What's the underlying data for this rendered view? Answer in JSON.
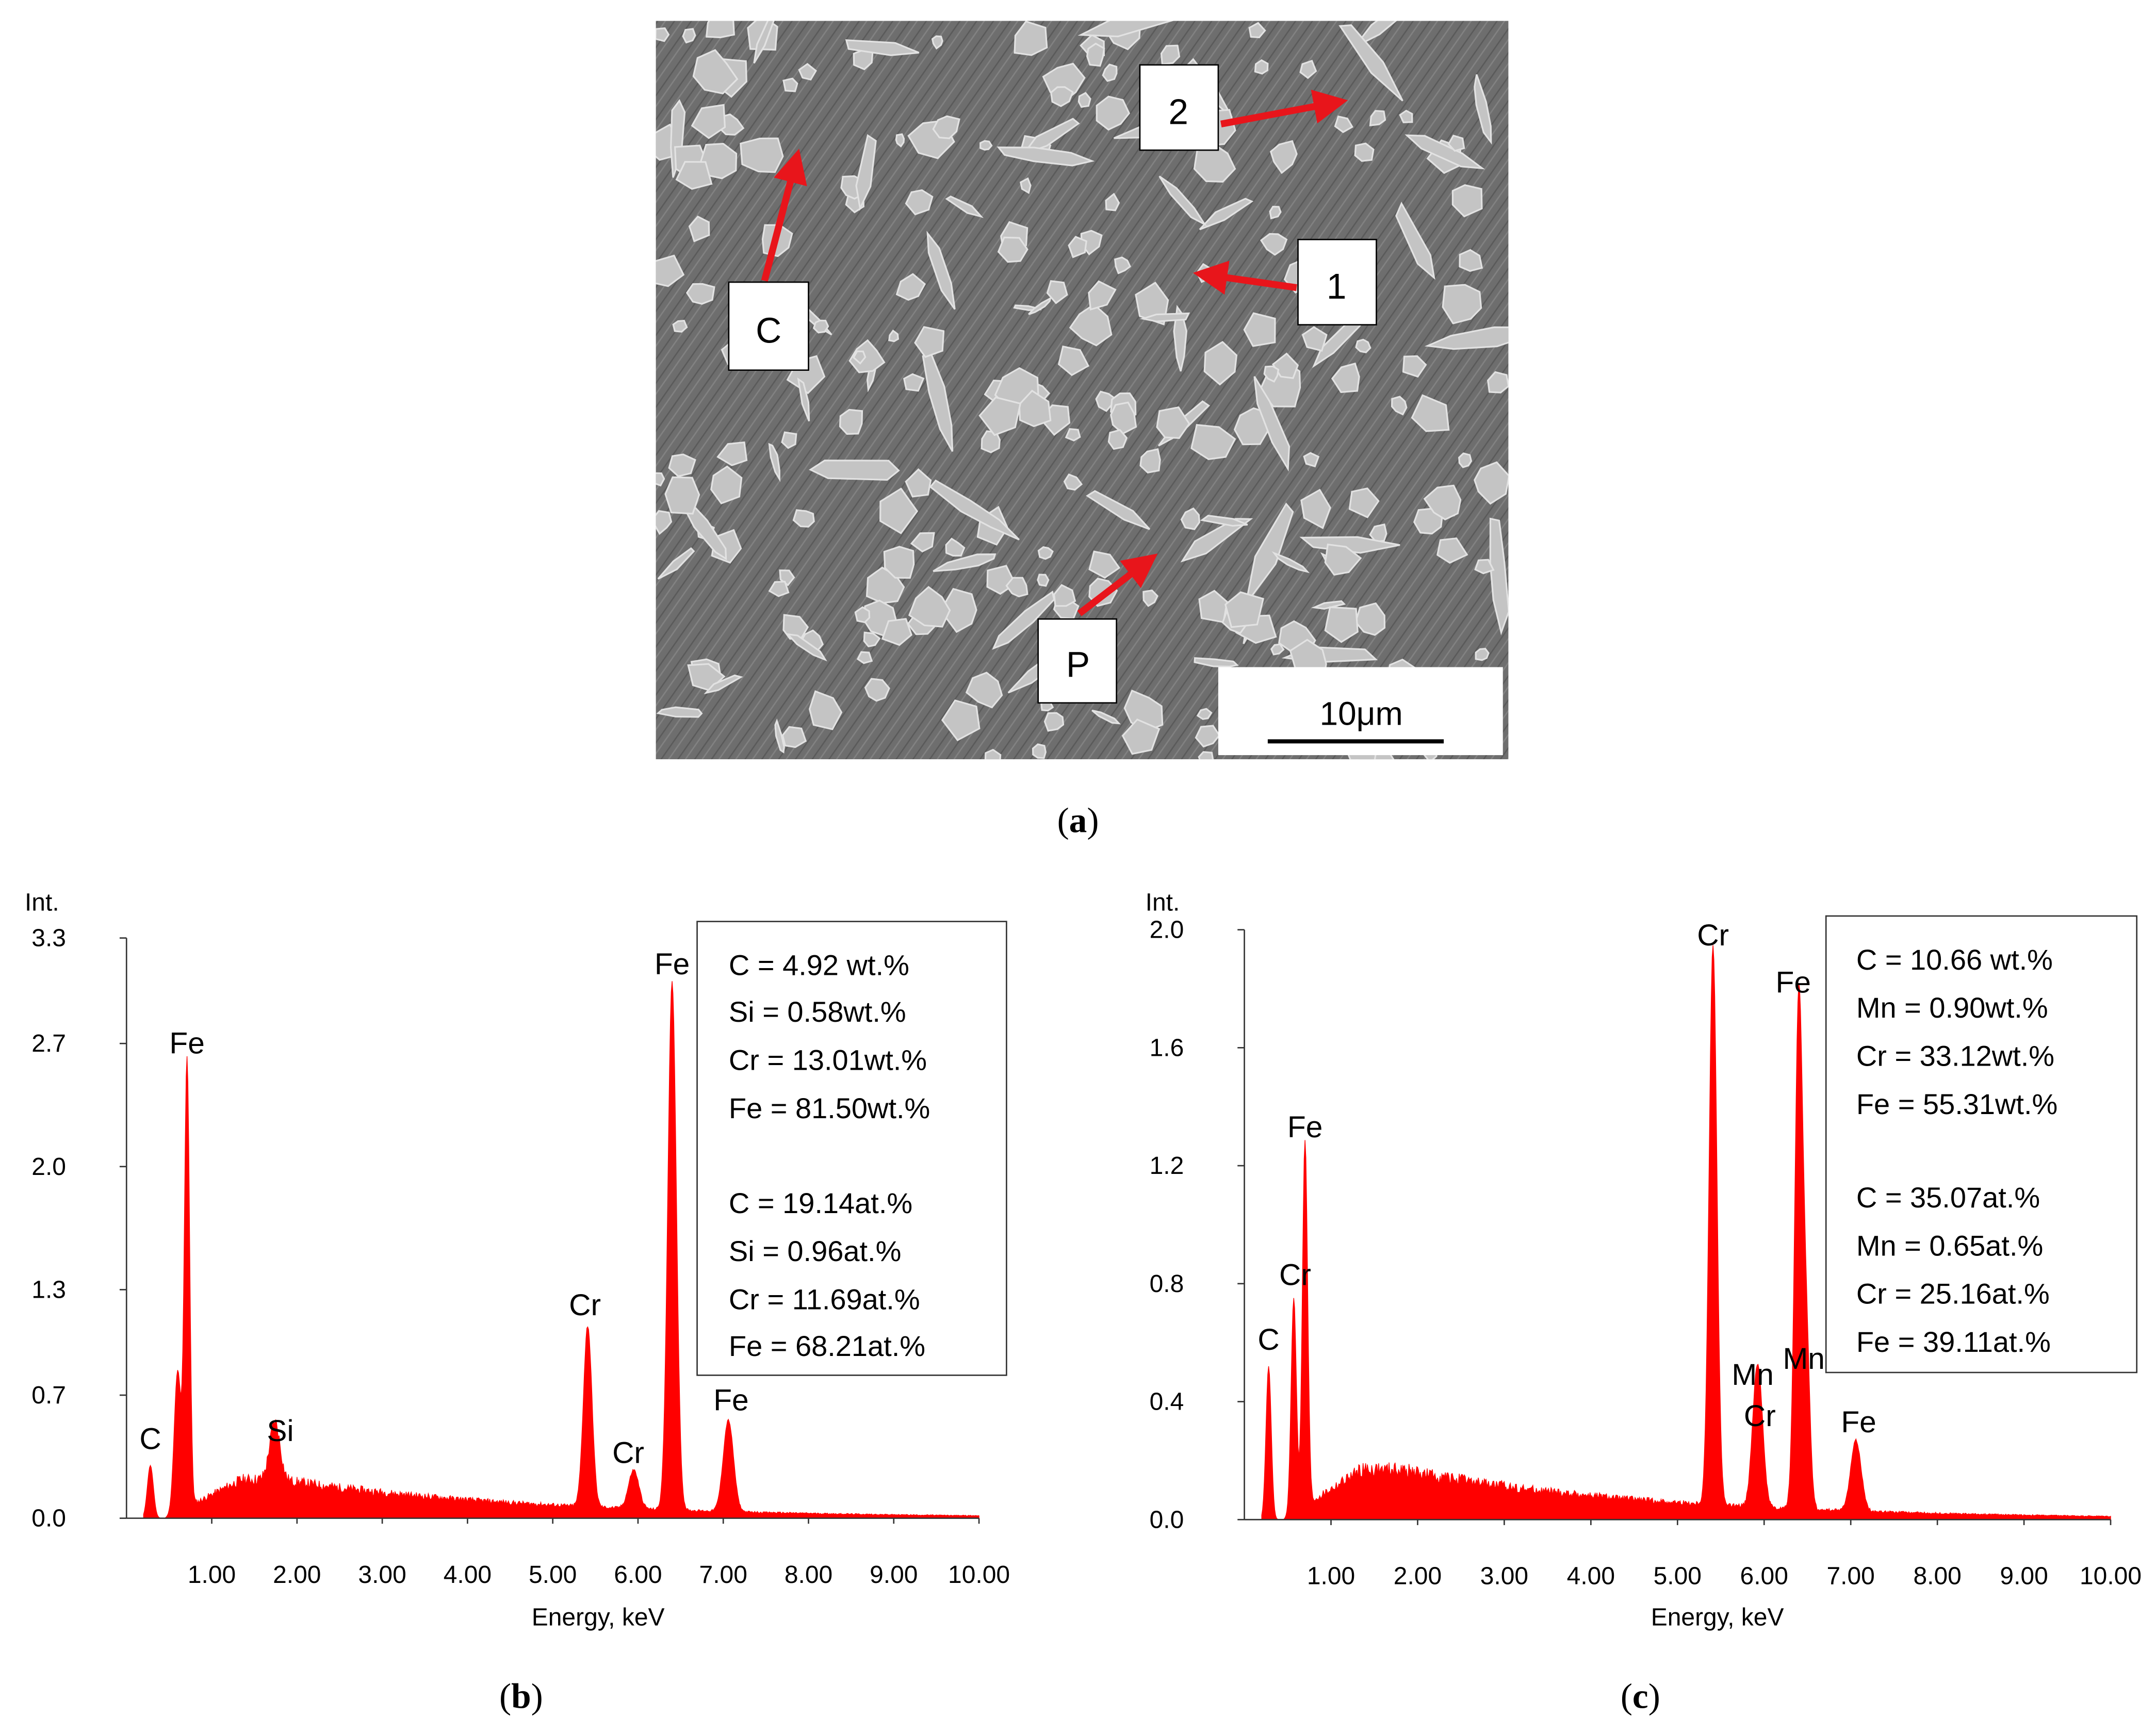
{
  "panel_a": {
    "caption": "a",
    "labels": {
      "c": "C",
      "p": "P",
      "one": "1",
      "two": "2"
    },
    "scale_bar": "10μm",
    "colors": {
      "arrow": "#e8151b",
      "background": "#6b6b6b",
      "particle": "#c2c2c2"
    }
  },
  "chart_data": [
    {
      "panel": "b",
      "type": "area",
      "x_label": "Energy, keV",
      "y_label": "Int.",
      "xlim": [
        0,
        10.0
      ],
      "ylim": [
        0.0,
        3.3
      ],
      "x_ticks": [
        "1.00",
        "2.00",
        "3.00",
        "4.00",
        "5.00",
        "6.00",
        "7.00",
        "8.00",
        "9.00",
        "10.00"
      ],
      "y_ticks": [
        "0.0",
        "0.7",
        "1.3",
        "2.0",
        "2.7",
        "3.3"
      ],
      "color": "#ff0000",
      "peaks": [
        {
          "label": "C",
          "energy": 0.28,
          "height": 0.3,
          "width": 0.035
        },
        {
          "label": "",
          "energy": 0.6,
          "height": 0.8,
          "width": 0.04
        },
        {
          "label": "Fe",
          "energy": 0.71,
          "height": 2.55,
          "width": 0.03
        },
        {
          "label": "Si",
          "energy": 1.74,
          "height": 0.33,
          "width": 0.06
        },
        {
          "label": "Cr",
          "energy": 5.41,
          "height": 1.03,
          "width": 0.05
        },
        {
          "label": "Cr",
          "energy": 5.95,
          "height": 0.22,
          "width": 0.06
        },
        {
          "label": "Fe",
          "energy": 6.4,
          "height": 3.0,
          "width": 0.05
        },
        {
          "label": "Fe",
          "energy": 7.06,
          "height": 0.52,
          "width": 0.06
        }
      ],
      "composition": [
        "C = 4.92 wt.%",
        "Si = 0.58wt.%",
        "Cr = 13.01wt.%",
        "Fe = 81.50wt.%",
        "C = 19.14at.%",
        "Si = 0.96at.%",
        "Cr = 11.69at.%",
        "Fe = 68.21at.%"
      ],
      "caption": "b"
    },
    {
      "panel": "c",
      "type": "area",
      "x_label": "Energy, keV",
      "y_label": "Int.",
      "xlim": [
        0,
        10.0
      ],
      "ylim": [
        0.0,
        2.0
      ],
      "x_ticks": [
        "1.00",
        "2.00",
        "3.00",
        "4.00",
        "5.00",
        "6.00",
        "7.00",
        "8.00",
        "9.00",
        "10.00"
      ],
      "y_ticks": [
        "0.0",
        "0.4",
        "0.8",
        "1.2",
        "1.6",
        "2.0"
      ],
      "color": "#ff0000",
      "peaks": [
        {
          "label": "C",
          "energy": 0.28,
          "height": 0.52,
          "width": 0.03
        },
        {
          "label": "Cr",
          "energy": 0.57,
          "height": 0.73,
          "width": 0.03
        },
        {
          "label": "Fe",
          "energy": 0.7,
          "height": 1.24,
          "width": 0.03
        },
        {
          "label": "Cr",
          "energy": 5.41,
          "height": 1.9,
          "width": 0.045
        },
        {
          "label": "Mn",
          "energy": 5.9,
          "height": 0.27,
          "width": 0.05
        },
        {
          "label": "Cr",
          "energy": 5.95,
          "height": 0.28,
          "width": 0.05
        },
        {
          "label": "Fe",
          "energy": 6.4,
          "height": 1.74,
          "width": 0.045
        },
        {
          "label": "Mn",
          "energy": 6.49,
          "height": 0.52,
          "width": 0.04
        },
        {
          "label": "Fe",
          "energy": 7.06,
          "height": 0.24,
          "width": 0.06
        }
      ],
      "composition": [
        "C = 10.66 wt.%",
        "Mn = 0.90wt.%",
        "Cr = 33.12wt.%",
        "Fe = 55.31wt.%",
        "C = 35.07at.%",
        "Mn = 0.65at.%",
        "Cr = 25.16at.%",
        "Fe = 39.11at.%"
      ],
      "caption": "c"
    }
  ]
}
